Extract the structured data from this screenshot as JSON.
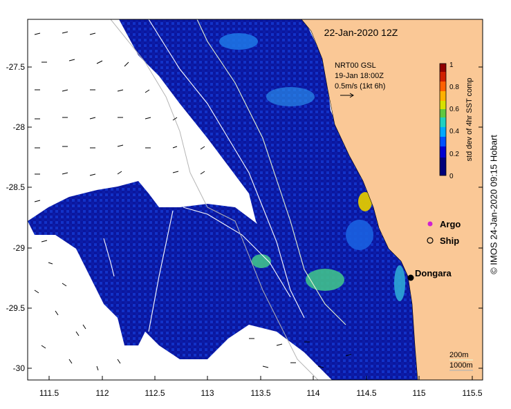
{
  "title": "22-Jan-2020 12Z",
  "current_info": {
    "line1": "NRT00 GSL",
    "line2": "19-Jan 18:00Z",
    "line3": "0.5m/s (1kt 6h)"
  },
  "colorbar": {
    "label": "std dev of 4hr SST comp",
    "ticks": [
      "0",
      "0.2",
      "0.4",
      "0.6",
      "0.8",
      "1"
    ],
    "colors": [
      "#000080",
      "#0000d0",
      "#0050ff",
      "#00a8ff",
      "#20d0c0",
      "#40c860",
      "#80d020",
      "#d8e000",
      "#ffb000",
      "#ff6000",
      "#d02000",
      "#900000"
    ]
  },
  "legend": {
    "argo": "Argo",
    "ship": "Ship",
    "argo_color": "#d020d0"
  },
  "place": "Dongara",
  "depth_labels": [
    "200m",
    "1000m"
  ],
  "x_ticks": [
    "111.5",
    "112",
    "112.5",
    "113",
    "113.5",
    "114",
    "114.5",
    "115",
    "115.5"
  ],
  "y_ticks": [
    "-27.5",
    "-28",
    "-28.5",
    "-29",
    "-29.5",
    "-30"
  ],
  "credit": "© IMOS 24-Jan-2020 09:15 Hobart",
  "colors": {
    "land": "#fac896",
    "ocean_low": "#0a14a0",
    "ocean_mid": "#1e50e6"
  }
}
